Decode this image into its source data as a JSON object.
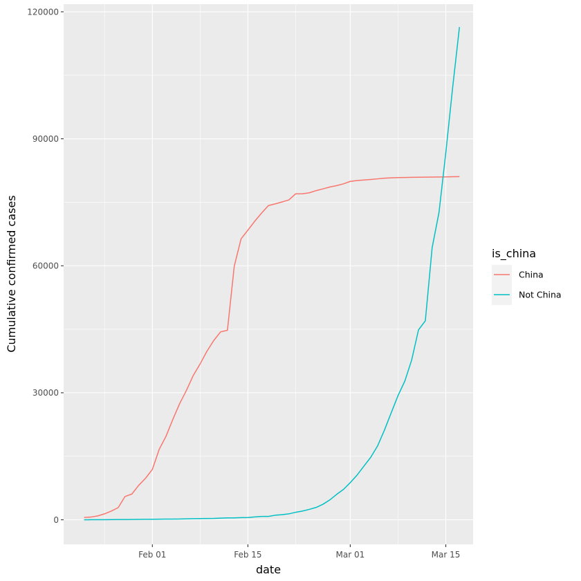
{
  "chart_data": {
    "type": "line",
    "xlabel": "date",
    "ylabel": "Cumulative confirmed cases",
    "x_tick_labels": [
      {
        "date": "2020-02-01",
        "label": "Feb 01"
      },
      {
        "date": "2020-02-15",
        "label": "Feb 15"
      },
      {
        "date": "2020-03-01",
        "label": "Mar 01"
      },
      {
        "date": "2020-03-15",
        "label": "Mar 15"
      }
    ],
    "x_minor_breaks": [
      "2020-01-25",
      "2020-02-08",
      "2020-02-22",
      "2020-03-08"
    ],
    "xlim": [
      "2020-01-19",
      "2020-03-19"
    ],
    "y_ticks": [
      0,
      30000,
      60000,
      90000,
      120000
    ],
    "y_tick_labels": [
      "0",
      "30000",
      "60000",
      "90000",
      "120000"
    ],
    "ylim": [
      -5800,
      121800
    ],
    "grid": true,
    "legend": {
      "title": "is_china",
      "position": "right",
      "entries": [
        "China",
        "Not China"
      ]
    },
    "series": [
      {
        "name": "China",
        "color": "#F8766D",
        "x": [
          "2020-01-22",
          "2020-01-23",
          "2020-01-24",
          "2020-01-25",
          "2020-01-26",
          "2020-01-27",
          "2020-01-28",
          "2020-01-29",
          "2020-01-30",
          "2020-01-31",
          "2020-02-01",
          "2020-02-02",
          "2020-02-03",
          "2020-02-04",
          "2020-02-05",
          "2020-02-06",
          "2020-02-07",
          "2020-02-08",
          "2020-02-09",
          "2020-02-10",
          "2020-02-11",
          "2020-02-12",
          "2020-02-13",
          "2020-02-14",
          "2020-02-15",
          "2020-02-16",
          "2020-02-17",
          "2020-02-18",
          "2020-02-19",
          "2020-02-20",
          "2020-02-21",
          "2020-02-22",
          "2020-02-23",
          "2020-02-24",
          "2020-02-25",
          "2020-02-26",
          "2020-02-27",
          "2020-02-28",
          "2020-02-29",
          "2020-03-01",
          "2020-03-02",
          "2020-03-03",
          "2020-03-04",
          "2020-03-05",
          "2020-03-06",
          "2020-03-07",
          "2020-03-08",
          "2020-03-09",
          "2020-03-10",
          "2020-03-11",
          "2020-03-12",
          "2020-03-13",
          "2020-03-14",
          "2020-03-15",
          "2020-03-16",
          "2020-03-17"
        ],
        "values": [
          548,
          643,
          920,
          1406,
          2075,
          2877,
          5509,
          6087,
          8141,
          9802,
          11891,
          16630,
          19716,
          23707,
          27440,
          30587,
          34110,
          36814,
          39829,
          42354,
          44386,
          44759,
          59895,
          66358,
          68413,
          70513,
          72434,
          74211,
          74619,
          75077,
          75550,
          77001,
          77022,
          77241,
          77754,
          78166,
          78600,
          78928,
          79356,
          79932,
          80136,
          80261,
          80386,
          80537,
          80690,
          80770,
          80823,
          80860,
          80887,
          80921,
          80932,
          80945,
          80977,
          81003,
          81033,
          81058
        ]
      },
      {
        "name": "Not China",
        "color": "#00BFC4",
        "x": [
          "2020-01-22",
          "2020-01-23",
          "2020-01-24",
          "2020-01-25",
          "2020-01-26",
          "2020-01-27",
          "2020-01-28",
          "2020-01-29",
          "2020-01-30",
          "2020-01-31",
          "2020-02-01",
          "2020-02-02",
          "2020-02-03",
          "2020-02-04",
          "2020-02-05",
          "2020-02-06",
          "2020-02-07",
          "2020-02-08",
          "2020-02-09",
          "2020-02-10",
          "2020-02-11",
          "2020-02-12",
          "2020-02-13",
          "2020-02-14",
          "2020-02-15",
          "2020-02-16",
          "2020-02-17",
          "2020-02-18",
          "2020-02-19",
          "2020-02-20",
          "2020-02-21",
          "2020-02-22",
          "2020-02-23",
          "2020-02-24",
          "2020-02-25",
          "2020-02-26",
          "2020-02-27",
          "2020-02-28",
          "2020-02-29",
          "2020-03-01",
          "2020-03-02",
          "2020-03-03",
          "2020-03-04",
          "2020-03-05",
          "2020-03-06",
          "2020-03-07",
          "2020-03-08",
          "2020-03-09",
          "2020-03-10",
          "2020-03-11",
          "2020-03-12",
          "2020-03-13",
          "2020-03-14",
          "2020-03-15",
          "2020-03-16",
          "2020-03-17"
        ],
        "values": [
          7,
          11,
          21,
          28,
          43,
          57,
          64,
          81,
          105,
          121,
          132,
          146,
          153,
          159,
          191,
          216,
          270,
          288,
          307,
          319,
          395,
          441,
          447,
          505,
          526,
          683,
          794,
          804,
          1073,
          1200,
          1402,
          1769,
          2069,
          2459,
          2918,
          3664,
          4691,
          5999,
          7169,
          8774,
          10566,
          12668,
          14766,
          17434,
          21152,
          25273,
          29336,
          32778,
          37750,
          44866,
          46996,
          64277,
          72569,
          86690,
          102050,
          116390
        ]
      }
    ]
  }
}
